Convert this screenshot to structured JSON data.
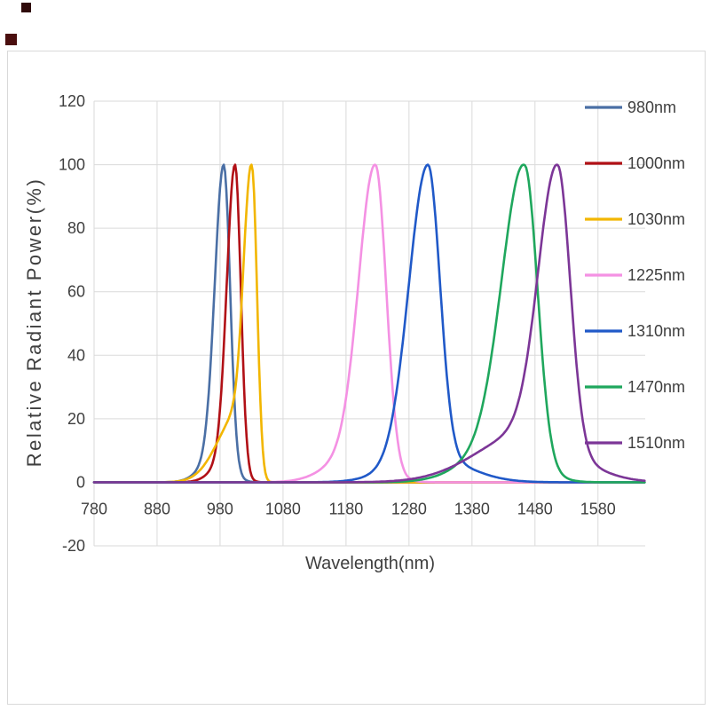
{
  "page": {
    "panel_border_color": "#d9d9d9",
    "corner_markers": [
      {
        "name": "top-marker",
        "color": "#2f0a0a"
      },
      {
        "name": "left-marker",
        "color": "#4a0e0e"
      }
    ]
  },
  "chart_data": {
    "type": "line",
    "title": "",
    "xlabel": "Wavelength(nm)",
    "ylabel": "Relative Radiant Power(%)",
    "x_unit": "nm",
    "y_unit": "%",
    "xlim": [
      780,
      1655
    ],
    "ylim": [
      -20,
      120
    ],
    "xticks": [
      780,
      880,
      980,
      1080,
      1180,
      1280,
      1380,
      1480,
      1580
    ],
    "yticks": [
      -20,
      0,
      20,
      40,
      60,
      80,
      100,
      120
    ],
    "grid": true,
    "grid_color": "#dadada",
    "axis_line_color": "#ababab",
    "tick_label_color": "#3f3f3f",
    "axis_title_color": "#3f3f3f",
    "legend_position": "right",
    "series": [
      {
        "name": "980nm",
        "color": "#4a6fa5",
        "peak_nm": 986,
        "peak_value": 100,
        "approx_fwhm_nm": 28,
        "components": [
          {
            "center": 986,
            "sigmaL": 14,
            "sigmaR": 10,
            "amp": 100
          },
          {
            "center": 975,
            "sigmaL": 25,
            "sigmaR": 20,
            "amp": 8
          }
        ]
      },
      {
        "name": "1000nm",
        "color": "#b11016",
        "peak_nm": 1004,
        "peak_value": 100,
        "approx_fwhm_nm": 26,
        "components": [
          {
            "center": 1004,
            "sigmaL": 13,
            "sigmaR": 9,
            "amp": 100
          },
          {
            "center": 995,
            "sigmaL": 24,
            "sigmaR": 16,
            "amp": 8
          }
        ]
      },
      {
        "name": "1030nm",
        "color": "#f2b600",
        "peak_nm": 1031,
        "peak_value": 100,
        "approx_fwhm_nm": 24,
        "components": [
          {
            "center": 1031,
            "sigmaL": 12,
            "sigmaR": 8,
            "amp": 100
          },
          {
            "center": 1012,
            "sigmaL": 34,
            "sigmaR": 12,
            "amp": 24
          }
        ]
      },
      {
        "name": "1225nm",
        "color": "#f491e3",
        "peak_nm": 1227,
        "peak_value": 100,
        "approx_fwhm_nm": 51,
        "components": [
          {
            "center": 1227,
            "sigmaL": 26,
            "sigmaR": 17,
            "amp": 100
          },
          {
            "center": 1200,
            "sigmaL": 45,
            "sigmaR": 35,
            "amp": 10
          }
        ]
      },
      {
        "name": "1310nm",
        "color": "#2059c8",
        "peak_nm": 1310,
        "peak_value": 100,
        "approx_fwhm_nm": 58,
        "components": [
          {
            "center": 1310,
            "sigmaL": 30,
            "sigmaR": 19,
            "amp": 100
          },
          {
            "center": 1310,
            "sigmaL": 55,
            "sigmaR": 60,
            "amp": 9
          }
        ]
      },
      {
        "name": "1470nm",
        "color": "#1fa75d",
        "peak_nm": 1464,
        "peak_value": 100,
        "approx_fwhm_nm": 65,
        "components": [
          {
            "center": 1464,
            "sigmaL": 35,
            "sigmaR": 20,
            "amp": 100
          },
          {
            "center": 1440,
            "sigmaL": 60,
            "sigmaR": 40,
            "amp": 15
          }
        ]
      },
      {
        "name": "1510nm",
        "color": "#7c3697",
        "peak_nm": 1516,
        "peak_value": 100,
        "approx_fwhm_nm": 59,
        "components": [
          {
            "center": 1516,
            "sigmaL": 30,
            "sigmaR": 20,
            "amp": 100
          },
          {
            "center": 1470,
            "sigmaL": 80,
            "sigmaR": 70,
            "amp": 18
          }
        ]
      }
    ]
  }
}
